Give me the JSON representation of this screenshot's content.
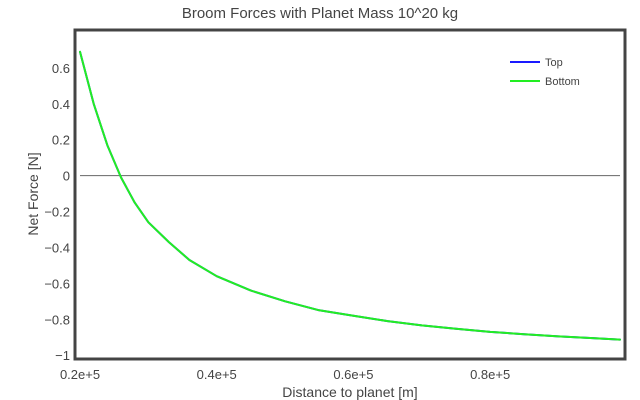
{
  "chart_data": {
    "type": "line",
    "title": "Broom Forces with Planet Mass 10^20 kg",
    "xlabel": "Distance to planet [m]",
    "ylabel": "Net Force [N]",
    "xlim": [
      20000,
      99000
    ],
    "ylim": [
      -1.01,
      0.8
    ],
    "x_ticks": [
      {
        "value": 20000,
        "label": "0.2e+5"
      },
      {
        "value": 40000,
        "label": "0.4e+5"
      },
      {
        "value": 60000,
        "label": "0.6e+5"
      },
      {
        "value": 80000,
        "label": "0.8e+5"
      }
    ],
    "y_ticks": [
      {
        "value": 0.6,
        "label": "0.6"
      },
      {
        "value": 0.4,
        "label": "0.4"
      },
      {
        "value": 0.2,
        "label": "0.2"
      },
      {
        "value": 0,
        "label": "0"
      },
      {
        "value": -0.2,
        "label": "−0.2"
      },
      {
        "value": -0.4,
        "label": "−0.4"
      },
      {
        "value": -0.6,
        "label": "−0.6"
      },
      {
        "value": -0.8,
        "label": "−0.8"
      },
      {
        "value": -1,
        "label": "−1"
      }
    ],
    "zero_line": true,
    "grid": false,
    "legend_position": "top-right",
    "series": [
      {
        "name": "Top",
        "color": "#1a1aff",
        "x": [
          20000,
          22000,
          24000,
          26000,
          28000,
          30000,
          33000,
          36000,
          40000,
          45000,
          50000,
          55000,
          60000,
          65000,
          70000,
          75000,
          80000,
          85000,
          90000,
          95000,
          99000
        ],
        "y": [
          0.69,
          0.4,
          0.17,
          -0.01,
          -0.15,
          -0.26,
          -0.37,
          -0.47,
          -0.56,
          -0.64,
          -0.7,
          -0.75,
          -0.78,
          -0.81,
          -0.834,
          -0.853,
          -0.87,
          -0.883,
          -0.895,
          -0.905,
          -0.913
        ]
      },
      {
        "name": "Bottom",
        "color": "#22ee22",
        "x": [
          20000,
          22000,
          24000,
          26000,
          28000,
          30000,
          33000,
          36000,
          40000,
          45000,
          50000,
          55000,
          60000,
          65000,
          70000,
          75000,
          80000,
          85000,
          90000,
          95000,
          99000
        ],
        "y": [
          0.69,
          0.4,
          0.17,
          -0.01,
          -0.15,
          -0.26,
          -0.37,
          -0.47,
          -0.56,
          -0.64,
          -0.7,
          -0.75,
          -0.78,
          -0.81,
          -0.834,
          -0.853,
          -0.87,
          -0.883,
          -0.895,
          -0.905,
          -0.913
        ]
      }
    ]
  }
}
